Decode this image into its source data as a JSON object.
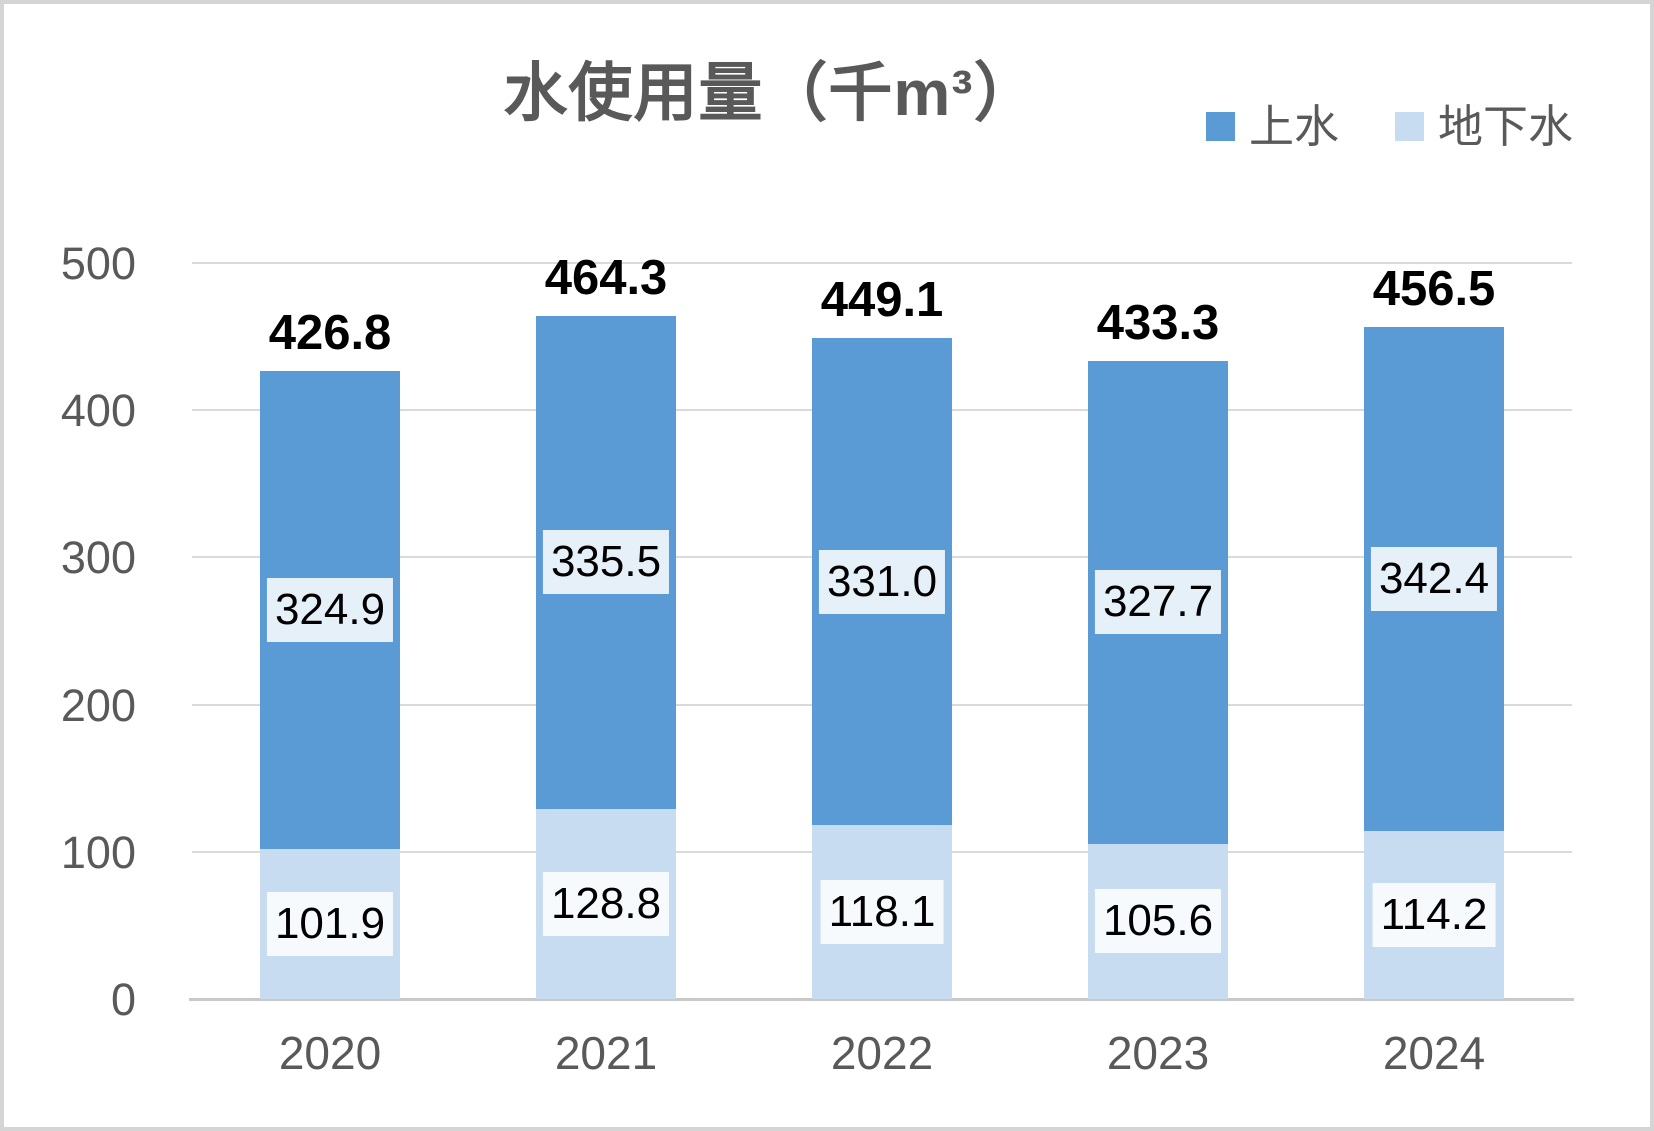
{
  "chart_data": {
    "type": "bar",
    "stacked": true,
    "title": "水使用量（千m³）",
    "categories": [
      "2020",
      "2021",
      "2022",
      "2023",
      "2024"
    ],
    "series": [
      {
        "name": "上水",
        "color": "#5B9BD5",
        "values": [
          "324.9",
          "335.5",
          "331.0",
          "327.7",
          "342.4"
        ]
      },
      {
        "name": "地下水",
        "color": "#C7DCF1",
        "values": [
          "101.9",
          "128.8",
          "118.1",
          "105.6",
          "114.2"
        ]
      }
    ],
    "totals": [
      "426.8",
      "464.3",
      "449.1",
      "433.3",
      "456.5"
    ],
    "y_ticks": [
      "500",
      "400",
      "300",
      "200",
      "100",
      "0"
    ],
    "ylim": [
      0,
      500
    ],
    "grid": true,
    "legend_position": "top-right",
    "colors": {
      "title_text": "#595959",
      "axis_text": "#595959",
      "data_label_text": "#000000",
      "gridline": "#DADADA",
      "axis_line": "#C9C9C9",
      "label_box_bg": "rgba(255,255,255,0.85)",
      "frame_border": "#D5D5D5"
    }
  }
}
